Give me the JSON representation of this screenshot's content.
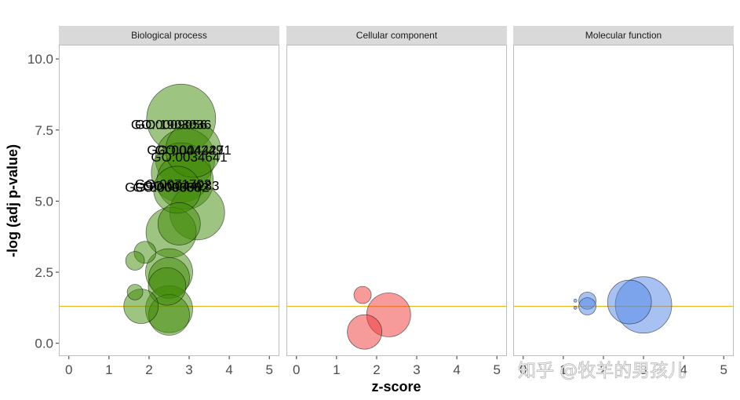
{
  "chart_data": {
    "type": "scatter",
    "encoding": "bubble",
    "title": "",
    "xlabel": "z-score",
    "ylabel": "-log (adj p-value)",
    "xlim": [
      -0.25,
      5.25
    ],
    "ylim": [
      -0.45,
      10.5
    ],
    "x_ticks": [
      "0",
      "1",
      "2",
      "3",
      "4",
      "5"
    ],
    "y_ticks": [
      "0.0",
      "2.5",
      "5.0",
      "7.5",
      "10.0"
    ],
    "threshold_y": 1.3,
    "threshold_color": "#f2b21c",
    "grid": false,
    "legend": "none",
    "panels": [
      {
        "name": "Biological process",
        "color": "#3e8a03",
        "points": [
          {
            "x": 2.8,
            "y": 7.9,
            "size": 44
          },
          {
            "x": 3.1,
            "y": 6.8,
            "size": 35
          },
          {
            "x": 2.9,
            "y": 6.5,
            "size": 38
          },
          {
            "x": 2.8,
            "y": 6.0,
            "size": 38
          },
          {
            "x": 2.9,
            "y": 5.7,
            "size": 36
          },
          {
            "x": 2.7,
            "y": 5.4,
            "size": 30
          },
          {
            "x": 3.2,
            "y": 4.6,
            "size": 35
          },
          {
            "x": 2.55,
            "y": 3.9,
            "size": 32
          },
          {
            "x": 2.75,
            "y": 4.2,
            "size": 27
          },
          {
            "x": 1.9,
            "y": 3.2,
            "size": 14
          },
          {
            "x": 1.65,
            "y": 2.9,
            "size": 12
          },
          {
            "x": 2.5,
            "y": 2.5,
            "size": 30
          },
          {
            "x": 2.5,
            "y": 2.3,
            "size": 26
          },
          {
            "x": 2.45,
            "y": 2.0,
            "size": 24
          },
          {
            "x": 1.65,
            "y": 1.8,
            "size": 10
          },
          {
            "x": 1.8,
            "y": 1.3,
            "size": 22
          },
          {
            "x": 2.5,
            "y": 1.2,
            "size": 30
          },
          {
            "x": 2.5,
            "y": 1.0,
            "size": 26
          }
        ],
        "labels": [
          {
            "text": "GO:0009056",
            "x": 2.5,
            "y": 7.7
          },
          {
            "text": "GO:1903036",
            "x": 2.6,
            "y": 7.7
          },
          {
            "text": "GO:0044249",
            "x": 2.9,
            "y": 6.8
          },
          {
            "text": "GO:0044271",
            "x": 3.1,
            "y": 6.8
          },
          {
            "text": "GO:0034641",
            "x": 3.0,
            "y": 6.55
          },
          {
            "text": "GO:0071702",
            "x": 2.6,
            "y": 5.6
          },
          {
            "text": "GO:0044283",
            "x": 2.8,
            "y": 5.55
          },
          {
            "text": "GO:0009058",
            "x": 2.35,
            "y": 5.5
          },
          {
            "text": "GO:0006082",
            "x": 2.55,
            "y": 5.5
          }
        ]
      },
      {
        "name": "Cellular component",
        "color": "#ee3535",
        "points": [
          {
            "x": 1.65,
            "y": 1.7,
            "size": 11
          },
          {
            "x": 2.3,
            "y": 1.0,
            "size": 28
          },
          {
            "x": 1.7,
            "y": 0.4,
            "size": 22
          }
        ],
        "labels": []
      },
      {
        "name": "Molecular function",
        "color": "#4f85e6",
        "points": [
          {
            "x": 2.65,
            "y": 1.45,
            "size": 28
          },
          {
            "x": 3.0,
            "y": 1.35,
            "size": 36
          },
          {
            "x": 1.6,
            "y": 1.5,
            "size": 11
          },
          {
            "x": 1.6,
            "y": 1.3,
            "size": 11
          },
          {
            "x": 1.3,
            "y": 1.5,
            "size": 2
          },
          {
            "x": 1.3,
            "y": 1.25,
            "size": 2
          }
        ],
        "labels": []
      }
    ]
  },
  "watermark": "知乎 @牧羊的男孩儿"
}
